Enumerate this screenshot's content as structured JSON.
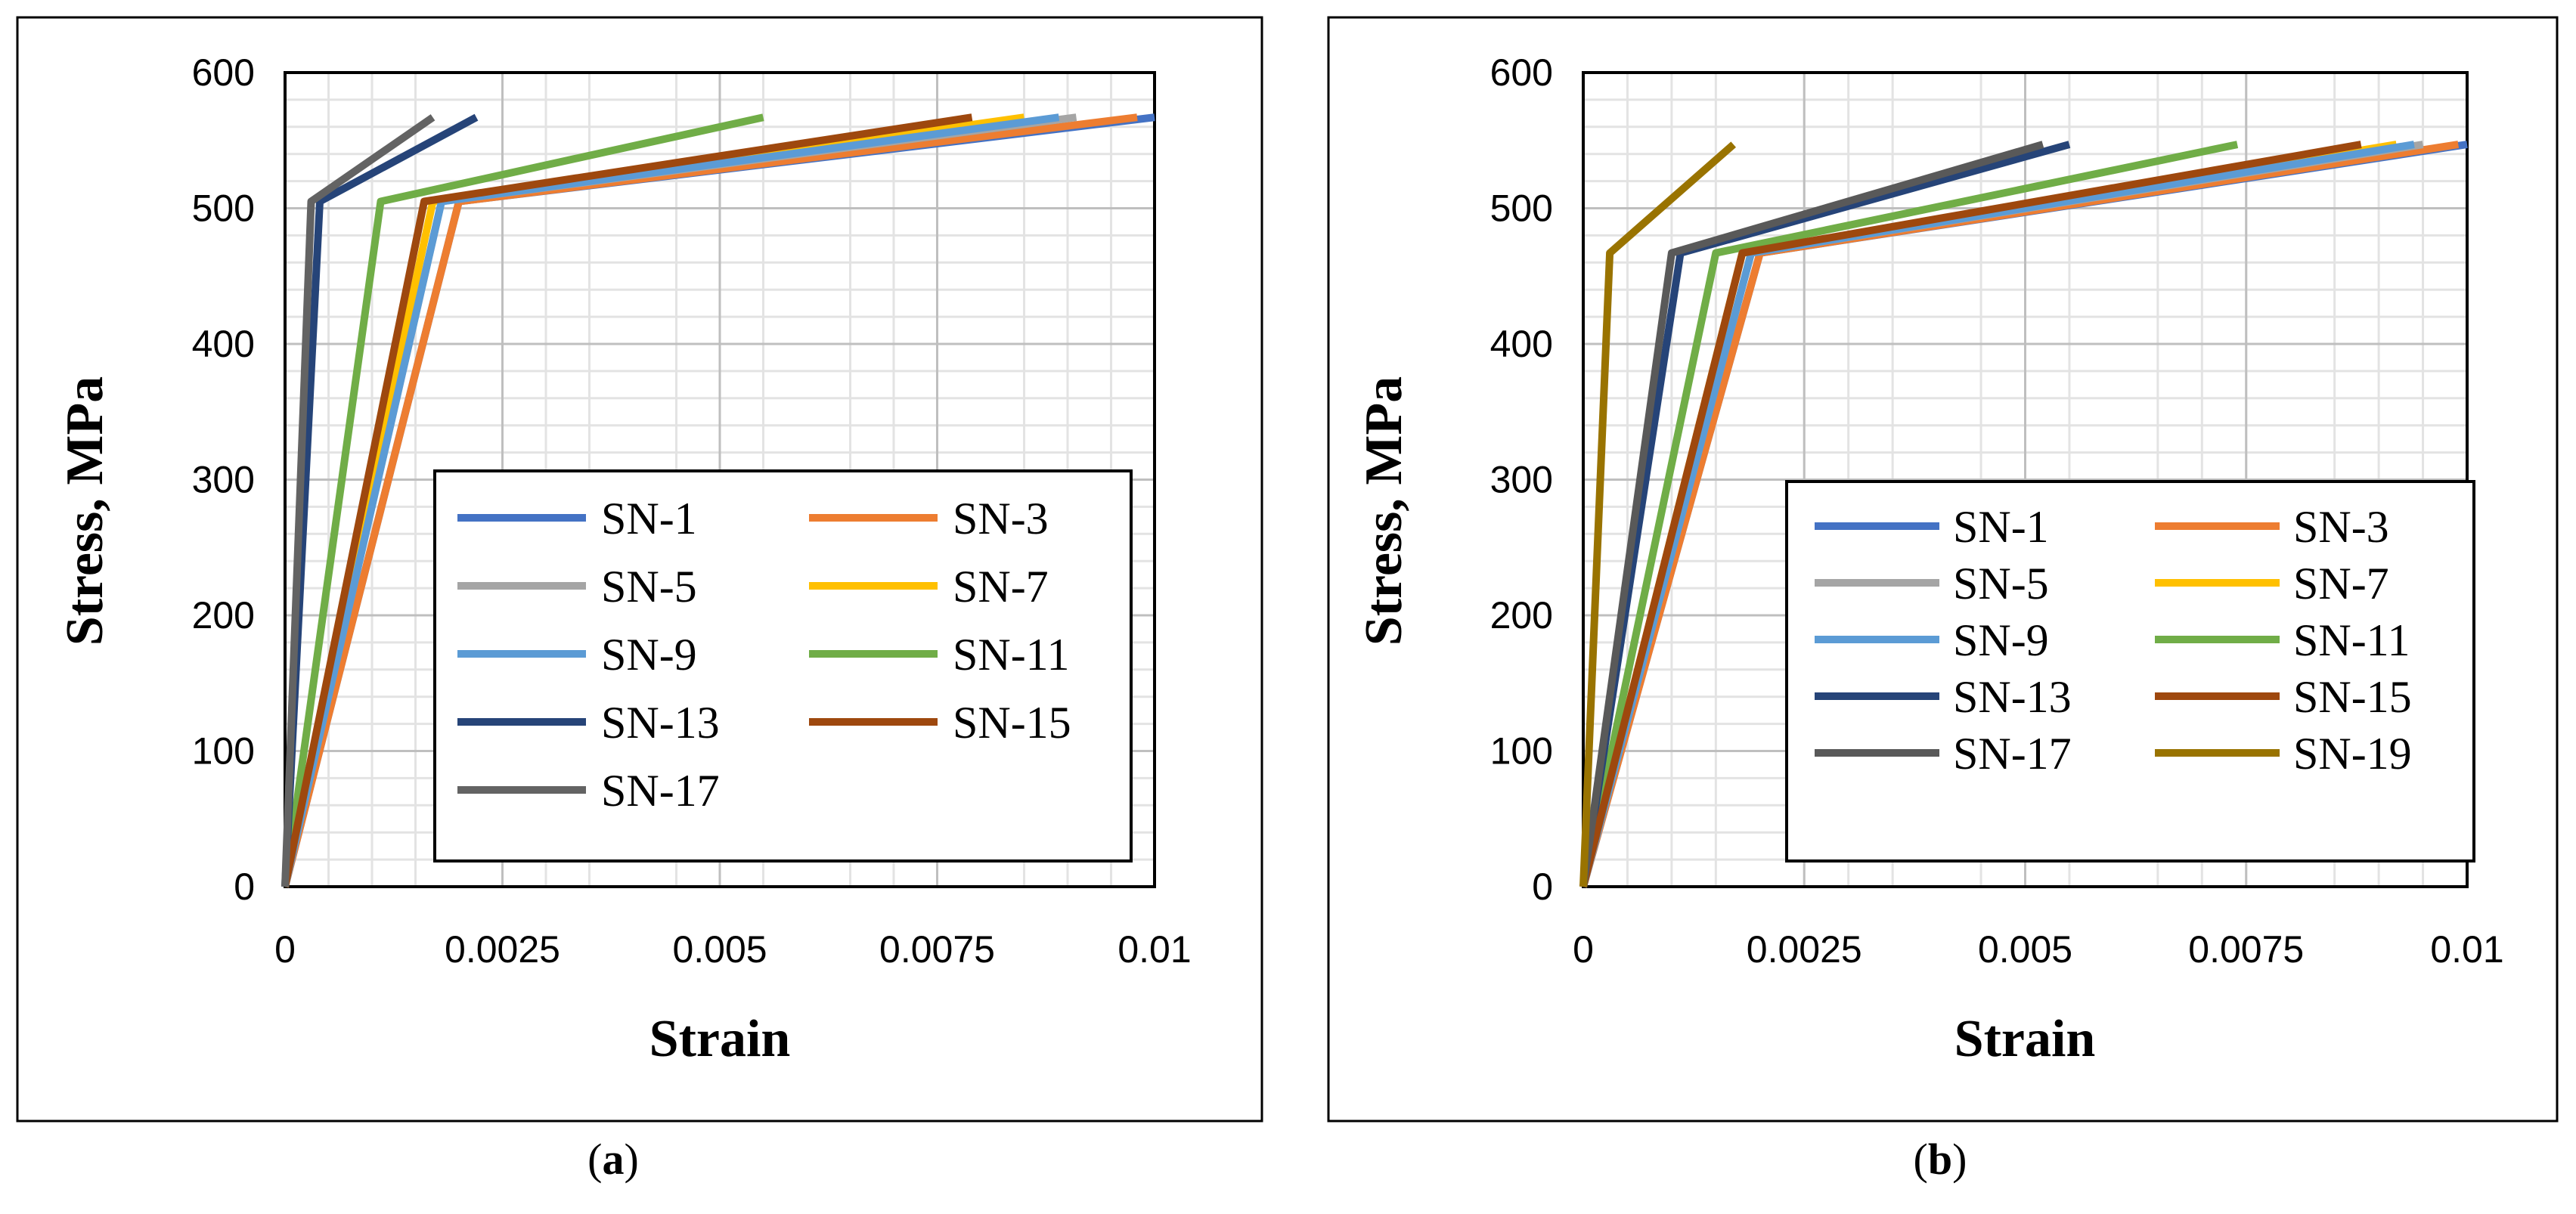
{
  "chart_data": [
    {
      "type": "line",
      "panel_label": "(a)",
      "panel_letter": "a",
      "xlabel": "Strain",
      "ylabel": "Stress, MPa",
      "xlim": [
        0,
        0.01
      ],
      "ylim": [
        0,
        600
      ],
      "x_ticks": [
        "0",
        "0.0025",
        "0.005",
        "0.0075",
        "0.01"
      ],
      "y_ticks": [
        "0",
        "100",
        "200",
        "300",
        "400",
        "500",
        "600"
      ],
      "legend_placement": "bottom-right",
      "series": [
        {
          "name": "SN-1",
          "color": "#4472C4",
          "points": [
            [
              0,
              0
            ],
            [
              0.002,
              505
            ],
            [
              0.01,
              567
            ]
          ]
        },
        {
          "name": "SN-3",
          "color": "#ED7D31",
          "points": [
            [
              0,
              0
            ],
            [
              0.002,
              505
            ],
            [
              0.0098,
              567
            ]
          ]
        },
        {
          "name": "SN-5",
          "color": "#A5A5A5",
          "points": [
            [
              0,
              0
            ],
            [
              0.0018,
              505
            ],
            [
              0.0091,
              567
            ]
          ]
        },
        {
          "name": "SN-7",
          "color": "#FFC000",
          "points": [
            [
              0,
              0
            ],
            [
              0.0017,
              505
            ],
            [
              0.0085,
              567
            ]
          ]
        },
        {
          "name": "SN-9",
          "color": "#5B9BD5",
          "points": [
            [
              0,
              0
            ],
            [
              0.0018,
              505
            ],
            [
              0.0089,
              567
            ]
          ]
        },
        {
          "name": "SN-11",
          "color": "#70AD47",
          "points": [
            [
              0,
              0
            ],
            [
              0.0011,
              505
            ],
            [
              0.0055,
              567
            ]
          ]
        },
        {
          "name": "SN-13",
          "color": "#264478",
          "points": [
            [
              0,
              0
            ],
            [
              0.0004,
              505
            ],
            [
              0.0022,
              567
            ]
          ]
        },
        {
          "name": "SN-15",
          "color": "#9E480E",
          "points": [
            [
              0,
              0
            ],
            [
              0.0016,
              505
            ],
            [
              0.0079,
              567
            ]
          ]
        },
        {
          "name": "SN-17",
          "color": "#636363",
          "points": [
            [
              0,
              0
            ],
            [
              0.0003,
              505
            ],
            [
              0.0017,
              567
            ]
          ]
        }
      ]
    },
    {
      "type": "line",
      "panel_label": "(b)",
      "panel_letter": "b",
      "xlabel": "Strain",
      "ylabel": "Stress, MPa",
      "xlim": [
        0,
        0.01
      ],
      "ylim": [
        0,
        600
      ],
      "x_ticks": [
        "0",
        "0.0025",
        "0.005",
        "0.0075",
        "0.01"
      ],
      "y_ticks": [
        "0",
        "100",
        "200",
        "300",
        "400",
        "500",
        "600"
      ],
      "legend_placement": "bottom-right",
      "series": [
        {
          "name": "SN-1",
          "color": "#4472C4",
          "points": [
            [
              0,
              0
            ],
            [
              0.002,
              467
            ],
            [
              0.01,
              547
            ]
          ]
        },
        {
          "name": "SN-3",
          "color": "#ED7D31",
          "points": [
            [
              0,
              0
            ],
            [
              0.002,
              467
            ],
            [
              0.0099,
              547
            ]
          ]
        },
        {
          "name": "SN-5",
          "color": "#A5A5A5",
          "points": [
            [
              0,
              0
            ],
            [
              0.0019,
              467
            ],
            [
              0.0095,
              547
            ]
          ]
        },
        {
          "name": "SN-7",
          "color": "#FFC000",
          "points": [
            [
              0,
              0
            ],
            [
              0.0018,
              467
            ],
            [
              0.0092,
              547
            ]
          ]
        },
        {
          "name": "SN-9",
          "color": "#5B9BD5",
          "points": [
            [
              0,
              0
            ],
            [
              0.0019,
              467
            ],
            [
              0.0094,
              547
            ]
          ]
        },
        {
          "name": "SN-11",
          "color": "#70AD47",
          "points": [
            [
              0,
              0
            ],
            [
              0.0015,
              467
            ],
            [
              0.0074,
              547
            ]
          ]
        },
        {
          "name": "SN-13",
          "color": "#264478",
          "points": [
            [
              0,
              0
            ],
            [
              0.0011,
              467
            ],
            [
              0.0055,
              547
            ]
          ]
        },
        {
          "name": "SN-15",
          "color": "#9E480E",
          "points": [
            [
              0,
              0
            ],
            [
              0.0018,
              467
            ],
            [
              0.0088,
              547
            ]
          ]
        },
        {
          "name": "SN-17",
          "color": "#595959",
          "points": [
            [
              0,
              0
            ],
            [
              0.001,
              467
            ],
            [
              0.0052,
              547
            ]
          ]
        },
        {
          "name": "SN-19",
          "color": "#997300",
          "points": [
            [
              0,
              0
            ],
            [
              0.0003,
              467
            ],
            [
              0.0017,
              547
            ]
          ]
        }
      ]
    }
  ]
}
